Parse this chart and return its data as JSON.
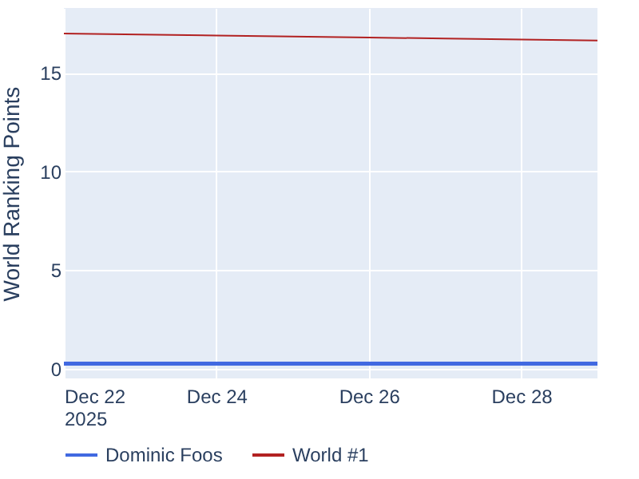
{
  "chart_data": {
    "type": "line",
    "ylabel": "World Ranking Points",
    "x": [
      "2025-12-22",
      "2025-12-23",
      "2025-12-24",
      "2025-12-25",
      "2025-12-26",
      "2025-12-27",
      "2025-12-28",
      "2025-12-29"
    ],
    "series": [
      {
        "name": "Dominic Foos",
        "color": "#4169e1",
        "values": [
          0.25,
          0.25,
          0.25,
          0.25,
          0.25,
          0.25,
          0.25,
          0.25
        ]
      },
      {
        "name": "World #1",
        "color": "#b22222",
        "values": [
          17.0,
          16.95,
          16.9,
          16.85,
          16.8,
          16.75,
          16.7,
          16.65
        ]
      }
    ],
    "xlim": [
      "2025-12-22",
      "2025-12-29"
    ],
    "xticks": [
      {
        "value": "2025-12-22",
        "label": "Dec 22\n2025"
      },
      {
        "value": "2025-12-24",
        "label": "Dec 24"
      },
      {
        "value": "2025-12-26",
        "label": "Dec 26"
      },
      {
        "value": "2025-12-28",
        "label": "Dec 28"
      }
    ],
    "ylim": [
      -0.5,
      18.3
    ],
    "yticks": [
      0,
      5,
      10,
      15
    ],
    "grid": true,
    "legend": "bottom"
  }
}
